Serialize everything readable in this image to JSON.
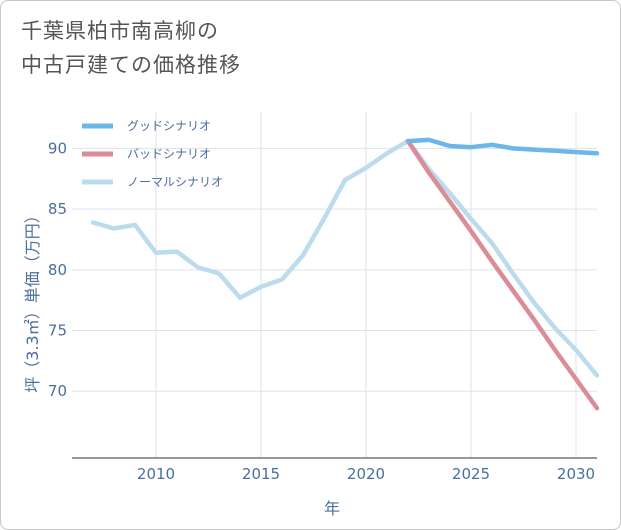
{
  "chart_data": {
    "type": "line",
    "title": [
      "千葉県柏市南高柳の",
      "中古戸建ての価格推移"
    ],
    "xlabel": "年",
    "ylabel": "坪（3.3㎡）単価（万円）",
    "xlim": [
      2006,
      2031
    ],
    "ylim": [
      64.5,
      93
    ],
    "xticks": [
      2010,
      2015,
      2020,
      2025,
      2030
    ],
    "yticks": [
      70,
      75,
      80,
      85,
      90
    ],
    "grid": true,
    "legend_position": "top-left",
    "series": [
      {
        "name": "グッドシナリオ",
        "color": "#6cb6ea",
        "x": [
          2022,
          2023,
          2024,
          2025,
          2026,
          2027,
          2028,
          2029,
          2030,
          2031
        ],
        "y": [
          90.6,
          90.7,
          90.2,
          90.1,
          90.3,
          90.0,
          89.9,
          89.8,
          89.7,
          89.6
        ]
      },
      {
        "name": "バッドシナリオ",
        "color": "#dc8c96",
        "x": [
          2022,
          2023,
          2024,
          2025,
          2026,
          2027,
          2028,
          2029,
          2030,
          2031
        ],
        "y": [
          90.6,
          88.0,
          85.6,
          83.2,
          80.7,
          78.3,
          75.9,
          73.4,
          71.0,
          68.6
        ]
      },
      {
        "name": "ノーマルシナリオ",
        "color": "#bcdcee",
        "x": [
          2007,
          2008,
          2009,
          2010,
          2011,
          2012,
          2013,
          2014,
          2015,
          2016,
          2017,
          2018,
          2019,
          2020,
          2021,
          2022,
          2023,
          2024,
          2025,
          2026,
          2027,
          2028,
          2029,
          2030,
          2031
        ],
        "y": [
          83.9,
          83.4,
          83.7,
          81.4,
          81.5,
          80.2,
          79.7,
          77.7,
          78.6,
          79.2,
          81.2,
          84.2,
          87.4,
          88.4,
          89.6,
          90.6,
          88.3,
          86.3,
          84.2,
          82.2,
          79.7,
          77.3,
          75.2,
          73.4,
          71.3
        ]
      }
    ]
  }
}
